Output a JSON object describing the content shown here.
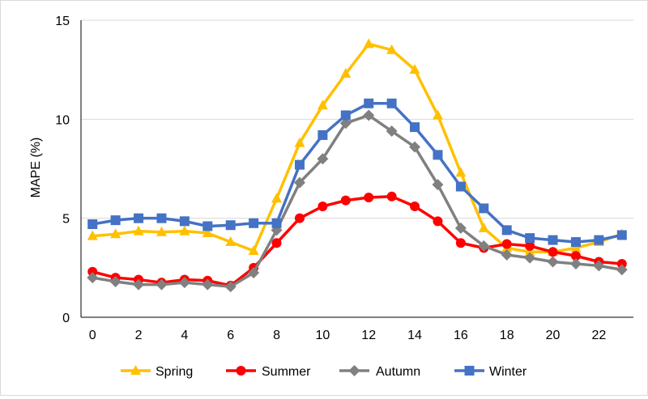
{
  "chart_data": {
    "type": "line",
    "title": "",
    "xlabel": "",
    "ylabel": "MAPE (%)",
    "x": [
      0,
      1,
      2,
      3,
      4,
      5,
      6,
      7,
      8,
      9,
      10,
      11,
      12,
      13,
      14,
      15,
      16,
      17,
      18,
      19,
      20,
      21,
      22,
      23
    ],
    "x_ticks": [
      0,
      2,
      4,
      6,
      8,
      10,
      12,
      14,
      16,
      18,
      20,
      22
    ],
    "y_ticks": [
      0,
      5,
      10,
      15
    ],
    "xlim": [
      -0.5,
      23.5
    ],
    "ylim": [
      0,
      15
    ],
    "grid": "horizontal",
    "legend": "bottom",
    "series": [
      {
        "name": "Spring",
        "color": "#FFC000",
        "marker": "triangle",
        "values": [
          4.1,
          4.2,
          4.35,
          4.3,
          4.35,
          4.25,
          3.8,
          3.35,
          6.0,
          8.8,
          10.7,
          12.3,
          13.8,
          13.5,
          12.5,
          10.2,
          7.3,
          4.5,
          3.5,
          3.3,
          3.3,
          3.5,
          3.8,
          4.2
        ]
      },
      {
        "name": "Summer",
        "color": "#FF0000",
        "marker": "circle",
        "values": [
          2.3,
          2.0,
          1.9,
          1.75,
          1.9,
          1.85,
          1.6,
          2.5,
          3.75,
          5.0,
          5.6,
          5.9,
          6.05,
          6.1,
          5.6,
          4.85,
          3.75,
          3.5,
          3.7,
          3.6,
          3.3,
          3.1,
          2.8,
          2.7
        ]
      },
      {
        "name": "Autumn",
        "color": "#808080",
        "marker": "diamond",
        "values": [
          2.0,
          1.8,
          1.65,
          1.65,
          1.75,
          1.65,
          1.55,
          2.25,
          4.4,
          6.8,
          8.0,
          9.8,
          10.2,
          9.4,
          8.6,
          6.7,
          4.5,
          3.6,
          3.15,
          3.0,
          2.8,
          2.7,
          2.6,
          2.4
        ]
      },
      {
        "name": "Winter",
        "color": "#4472C4",
        "marker": "square",
        "values": [
          4.7,
          4.9,
          5.0,
          5.0,
          4.85,
          4.6,
          4.65,
          4.75,
          4.75,
          7.7,
          9.2,
          10.2,
          10.8,
          10.8,
          9.6,
          8.2,
          6.6,
          5.5,
          4.4,
          4.0,
          3.9,
          3.8,
          3.9,
          4.15
        ]
      }
    ]
  }
}
